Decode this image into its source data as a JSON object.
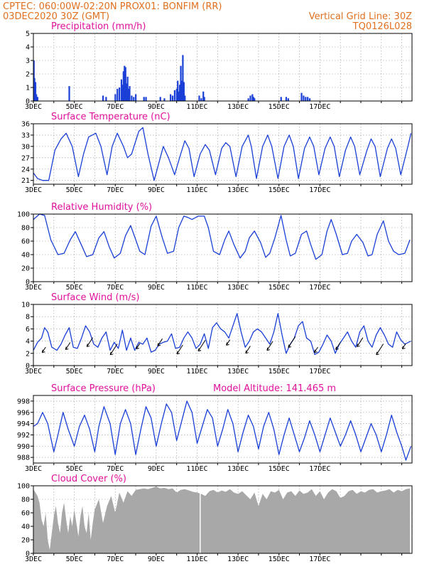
{
  "header": {
    "line1": "CPTEC:   060:00W-02:20N   PROX01: BONFIM (RR)",
    "line2": "03DEC2020 30Z (GMT)",
    "grid_note": "Vertical Grid Line: 30Z",
    "code": "TQ0126L028"
  },
  "colors": {
    "header": "#e07020",
    "title": "#e0109a",
    "series": "#1a3fd6",
    "cloud": "#a8a8a8",
    "grid": "#9a9a9a"
  },
  "x_tick_labels": [
    "3DEC",
    "5DEC",
    "7DEC",
    "9DEC",
    "11DEC",
    "13DEC",
    "15DEC",
    "17DEC"
  ],
  "panels": {
    "precip": {
      "title": "Precipitation (mm/h)",
      "yticks": [
        "0",
        "1",
        "2",
        "3",
        "4",
        "5"
      ]
    },
    "temp": {
      "title": "Surface Temperature (nC)",
      "yticks": [
        "21",
        "24",
        "27",
        "30",
        "33",
        "36"
      ]
    },
    "rh": {
      "title": "Relative Humidity (%)",
      "yticks": [
        "0",
        "20",
        "40",
        "60",
        "80",
        "100"
      ]
    },
    "wind": {
      "title": "Surface Wind (m/s)",
      "yticks": [
        "0",
        "2",
        "4",
        "6",
        "8",
        "10"
      ]
    },
    "pressure": {
      "title": "Surface Pressure (hPa)",
      "altitude": "Model Altitude: 141.465 m",
      "yticks": [
        "988",
        "990",
        "992",
        "994",
        "996",
        "998"
      ]
    },
    "cloud": {
      "title": "Cloud Cover (%)",
      "yticks": [
        "0",
        "20",
        "40",
        "60",
        "80",
        "100"
      ]
    }
  },
  "chart_data": [
    {
      "type": "bar",
      "title": "Precipitation (mm/h)",
      "x_unit": "days since 03DEC 00Z",
      "ylim": [
        0,
        5
      ],
      "points": [
        [
          0.02,
          3.0
        ],
        [
          0.05,
          1.7
        ],
        [
          0.1,
          1.4
        ],
        [
          0.14,
          0.5
        ],
        [
          0.2,
          0.3
        ],
        [
          1.75,
          1.1
        ],
        [
          3.4,
          0.4
        ],
        [
          3.55,
          0.3
        ],
        [
          4.0,
          0.5
        ],
        [
          4.1,
          0.9
        ],
        [
          4.2,
          1.0
        ],
        [
          4.3,
          1.6
        ],
        [
          4.35,
          1.2
        ],
        [
          4.4,
          2.2
        ],
        [
          4.45,
          2.6
        ],
        [
          4.5,
          2.5
        ],
        [
          4.55,
          1.3
        ],
        [
          4.6,
          1.8
        ],
        [
          4.65,
          0.9
        ],
        [
          4.7,
          1.1
        ],
        [
          4.8,
          0.4
        ],
        [
          4.9,
          0.3
        ],
        [
          5.0,
          0.5
        ],
        [
          5.4,
          0.3
        ],
        [
          5.5,
          0.3
        ],
        [
          6.2,
          0.3
        ],
        [
          6.4,
          0.2
        ],
        [
          6.7,
          0.5
        ],
        [
          6.8,
          0.4
        ],
        [
          6.9,
          0.8
        ],
        [
          7.0,
          0.9
        ],
        [
          7.05,
          1.5
        ],
        [
          7.1,
          0.7
        ],
        [
          7.15,
          1.2
        ],
        [
          7.2,
          2.6
        ],
        [
          7.25,
          1.5
        ],
        [
          7.3,
          3.4
        ],
        [
          7.35,
          1.4
        ],
        [
          7.4,
          0.4
        ],
        [
          8.1,
          0.4
        ],
        [
          8.2,
          0.2
        ],
        [
          8.3,
          0.7
        ],
        [
          8.35,
          0.3
        ],
        [
          10.5,
          0.2
        ],
        [
          10.6,
          0.4
        ],
        [
          10.7,
          0.5
        ],
        [
          10.75,
          0.3
        ],
        [
          10.8,
          0.2
        ],
        [
          12.1,
          0.3
        ],
        [
          12.35,
          0.3
        ],
        [
          12.45,
          0.2
        ],
        [
          13.1,
          0.6
        ],
        [
          13.2,
          0.4
        ],
        [
          13.3,
          0.3
        ],
        [
          13.4,
          0.3
        ],
        [
          13.5,
          0.2
        ]
      ]
    },
    {
      "type": "line",
      "title": "Surface Temperature (nC)",
      "x_unit": "days since 03DEC 00Z",
      "ylim": [
        20,
        36
      ],
      "x": [
        0,
        0.2,
        0.45,
        0.75,
        1.05,
        1.35,
        1.6,
        1.9,
        2.2,
        2.45,
        2.7,
        3.05,
        3.3,
        3.6,
        3.85,
        4.1,
        4.4,
        4.6,
        4.8,
        5.15,
        5.35,
        5.6,
        5.9,
        6.2,
        6.35,
        6.6,
        6.9,
        7.2,
        7.4,
        7.6,
        7.85,
        8.15,
        8.4,
        8.6,
        8.9,
        9.2,
        9.4,
        9.6,
        9.9,
        10.2,
        10.5,
        10.65,
        10.9,
        11.2,
        11.45,
        11.65,
        11.95,
        12.25,
        12.5,
        12.7,
        12.95,
        13.25,
        13.5,
        13.7,
        13.95,
        14.25,
        14.5,
        14.7,
        14.95,
        15.25,
        15.5,
        15.7,
        15.95,
        16.3,
        16.5,
        16.7,
        16.95,
        17.3,
        17.5,
        17.7,
        17.95,
        18.3,
        18.45
      ],
      "y": [
        23,
        21.5,
        21,
        21,
        29,
        32,
        33.5,
        30,
        22,
        28,
        32.5,
        33.5,
        30,
        22.5,
        30,
        33.5,
        30,
        27,
        28,
        34,
        35,
        28,
        21,
        27,
        30,
        27,
        22.5,
        28,
        31.5,
        29.5,
        22,
        28,
        30.5,
        29,
        22.5,
        29.5,
        31,
        30,
        22,
        30,
        33,
        30,
        21.5,
        30,
        33,
        30,
        21.5,
        30,
        33,
        30,
        21.5,
        29.5,
        32.5,
        30,
        22.5,
        29.5,
        32.5,
        30,
        22,
        29,
        32.5,
        30,
        22.5,
        29,
        32,
        30,
        22,
        29.5,
        32,
        29.5,
        22.5,
        30,
        33.5
      ]
    },
    {
      "type": "line",
      "title": "Relative Humidity (%)",
      "x_unit": "days since 03DEC 00Z",
      "ylim": [
        0,
        100
      ],
      "x": [
        0,
        0.3,
        0.55,
        0.85,
        1.2,
        1.5,
        1.8,
        2.05,
        2.35,
        2.6,
        2.9,
        3.2,
        3.45,
        3.7,
        3.95,
        4.25,
        4.5,
        4.75,
        5.0,
        5.2,
        5.45,
        5.75,
        6.0,
        6.3,
        6.55,
        6.85,
        7.1,
        7.35,
        7.55,
        7.75,
        8.05,
        8.35,
        8.55,
        8.8,
        9.1,
        9.35,
        9.55,
        9.8,
        10.1,
        10.35,
        10.55,
        10.8,
        11.1,
        11.35,
        11.55,
        11.8,
        12.1,
        12.35,
        12.55,
        12.8,
        13.1,
        13.35,
        13.55,
        13.8,
        14.1,
        14.35,
        14.55,
        14.8,
        15.1,
        15.35,
        15.55,
        15.8,
        16.1,
        16.35,
        16.55,
        16.8,
        17.1,
        17.35,
        17.6,
        17.85,
        18.15,
        18.4
      ],
      "y": [
        92,
        100,
        98,
        62,
        40,
        42,
        62,
        74,
        54,
        37,
        40,
        65,
        74,
        52,
        35,
        42,
        68,
        83,
        62,
        45,
        40,
        82,
        97,
        65,
        42,
        45,
        80,
        97,
        95,
        92,
        97,
        97,
        80,
        45,
        40,
        62,
        75,
        55,
        35,
        45,
        65,
        75,
        58,
        36,
        42,
        65,
        98,
        62,
        38,
        42,
        70,
        75,
        55,
        33,
        40,
        75,
        92,
        70,
        40,
        42,
        60,
        70,
        58,
        38,
        40,
        70,
        90,
        60,
        45,
        40,
        42,
        62
      ]
    },
    {
      "type": "line",
      "title": "Surface Wind (m/s)",
      "x_unit": "days since 03DEC 00Z",
      "ylim": [
        0,
        10
      ],
      "x": [
        0,
        0.2,
        0.4,
        0.55,
        0.7,
        0.9,
        1.15,
        1.35,
        1.55,
        1.75,
        1.95,
        2.15,
        2.35,
        2.55,
        2.75,
        2.95,
        3.15,
        3.35,
        3.55,
        3.75,
        3.95,
        4.15,
        4.35,
        4.55,
        4.75,
        4.95,
        5.15,
        5.35,
        5.55,
        5.75,
        5.95,
        6.15,
        6.35,
        6.55,
        6.75,
        6.95,
        7.15,
        7.35,
        7.55,
        7.75,
        7.95,
        8.15,
        8.35,
        8.55,
        8.75,
        8.95,
        9.15,
        9.35,
        9.55,
        9.75,
        9.95,
        10.15,
        10.35,
        10.55,
        10.75,
        10.95,
        11.15,
        11.35,
        11.55,
        11.75,
        11.95,
        12.15,
        12.35,
        12.55,
        12.75,
        12.95,
        13.15,
        13.35,
        13.55,
        13.75,
        13.95,
        14.15,
        14.35,
        14.55,
        14.75,
        14.95,
        15.15,
        15.35,
        15.55,
        15.75,
        15.95,
        16.15,
        16.35,
        16.55,
        16.75,
        16.95,
        17.15,
        17.35,
        17.55,
        17.75,
        17.95,
        18.15,
        18.45
      ],
      "y": [
        2.5,
        3.8,
        4.5,
        6.2,
        5.5,
        3.0,
        2.5,
        3.5,
        5.0,
        6.2,
        3.0,
        2.8,
        4.5,
        6.5,
        5.5,
        3.5,
        3.0,
        4.5,
        5.5,
        2.5,
        3.8,
        2.8,
        5.8,
        2.5,
        4.5,
        2.5,
        3.8,
        3.5,
        4.5,
        2.2,
        2.5,
        3.5,
        3.8,
        4.0,
        5.2,
        2.8,
        3.0,
        4.5,
        5.5,
        4.5,
        2.8,
        3.5,
        5.2,
        2.8,
        6.2,
        7.0,
        6.0,
        5.5,
        4.5,
        6.5,
        8.5,
        5.5,
        3.0,
        4.0,
        5.5,
        6.0,
        5.5,
        4.5,
        3.5,
        5.5,
        8.5,
        5.0,
        2.0,
        3.5,
        4.5,
        6.5,
        7.2,
        4.5,
        4.0,
        1.8,
        2.2,
        3.5,
        5.0,
        4.0,
        2.0,
        3.5,
        4.5,
        5.5,
        4.0,
        3.0,
        5.5,
        6.5,
        4.0,
        3.0,
        5.0,
        6.2,
        5.0,
        3.5,
        3.0,
        5.5,
        4.2,
        3.5,
        4.0
      ]
    },
    {
      "type": "line",
      "title": "Surface Pressure (hPa)",
      "x_unit": "days since 03DEC 00Z",
      "ylim": [
        987,
        999
      ],
      "x": [
        0,
        0.2,
        0.45,
        0.7,
        1.0,
        1.2,
        1.45,
        1.7,
        2.0,
        2.25,
        2.5,
        2.75,
        3.0,
        3.2,
        3.45,
        3.75,
        4.0,
        4.25,
        4.5,
        4.75,
        5.0,
        5.25,
        5.5,
        5.75,
        6.0,
        6.25,
        6.5,
        6.75,
        7.0,
        7.25,
        7.5,
        7.75,
        8.0,
        8.25,
        8.5,
        8.75,
        9.0,
        9.25,
        9.5,
        9.75,
        10.0,
        10.25,
        10.5,
        10.75,
        11.0,
        11.25,
        11.5,
        11.75,
        12.0,
        12.25,
        12.5,
        12.75,
        13.0,
        13.25,
        13.5,
        13.75,
        14.0,
        14.25,
        14.5,
        14.75,
        15.0,
        15.25,
        15.5,
        15.75,
        16.0,
        16.25,
        16.5,
        16.75,
        17.0,
        17.25,
        17.5,
        17.75,
        18.0,
        18.2,
        18.45
      ],
      "y": [
        993.5,
        994,
        996,
        994,
        989,
        992,
        996,
        993,
        990,
        993.5,
        995.5,
        993,
        989,
        993.5,
        997,
        994,
        988.5,
        994,
        996.5,
        994,
        988.5,
        993,
        997,
        995,
        990,
        994,
        997.5,
        996,
        991,
        994.5,
        998,
        996,
        990.5,
        993.5,
        996.5,
        995,
        990,
        993,
        996.5,
        994,
        989,
        992.5,
        995.5,
        993.5,
        989.5,
        993.5,
        996,
        993,
        988.5,
        992,
        995,
        992,
        989,
        991.5,
        994.5,
        992,
        989,
        992,
        995,
        992.5,
        990,
        992,
        994.5,
        992,
        989,
        991.5,
        994,
        992,
        989,
        992,
        995.5,
        992.5,
        990,
        987.5,
        990
      ]
    },
    {
      "type": "area",
      "title": "Cloud Cover (%)",
      "x_unit": "days since 03DEC 00Z",
      "ylim": [
        0,
        100
      ],
      "x": [
        0,
        0.1,
        0.2,
        0.3,
        0.4,
        0.5,
        0.6,
        0.7,
        0.8,
        0.9,
        1.0,
        1.1,
        1.2,
        1.3,
        1.4,
        1.5,
        1.6,
        1.7,
        1.8,
        1.9,
        2.0,
        2.1,
        2.2,
        2.3,
        2.4,
        2.5,
        2.6,
        2.7,
        2.8,
        2.9,
        3.0,
        3.2,
        3.4,
        3.6,
        3.8,
        4.0,
        4.2,
        4.4,
        4.6,
        4.8,
        5.0,
        5.2,
        5.4,
        5.6,
        5.8,
        6.0,
        6.2,
        6.4,
        6.6,
        6.8,
        7.0,
        7.2,
        7.4,
        7.6,
        7.8,
        8.0,
        8.2,
        8.4,
        8.6,
        8.8,
        9.0,
        9.2,
        9.4,
        9.6,
        9.8,
        10.0,
        10.2,
        10.4,
        10.6,
        10.8,
        11.0,
        11.2,
        11.4,
        11.6,
        11.8,
        12.0,
        12.2,
        12.4,
        12.6,
        12.8,
        13.0,
        13.2,
        13.4,
        13.6,
        13.8,
        14.0,
        14.2,
        14.4,
        14.6,
        14.8,
        15.0,
        15.2,
        15.4,
        15.6,
        15.8,
        16.0,
        16.2,
        16.4,
        16.6,
        16.8,
        17.0,
        17.2,
        17.4,
        17.6,
        17.8,
        18.0,
        18.2,
        18.4
      ],
      "y": [
        95,
        90,
        85,
        75,
        50,
        40,
        60,
        20,
        5,
        30,
        55,
        70,
        45,
        30,
        60,
        75,
        50,
        30,
        55,
        40,
        65,
        45,
        25,
        55,
        70,
        40,
        30,
        60,
        20,
        45,
        65,
        80,
        45,
        70,
        85,
        60,
        90,
        75,
        92,
        85,
        94,
        95,
        96,
        95,
        97,
        99,
        96,
        97,
        95,
        96,
        90,
        94,
        95,
        93,
        91,
        90,
        88,
        85,
        92,
        94,
        90,
        93,
        91,
        95,
        90,
        88,
        92,
        86,
        80,
        90,
        70,
        88,
        80,
        92,
        90,
        94,
        80,
        90,
        92,
        85,
        93,
        88,
        90,
        95,
        85,
        92,
        80,
        90,
        95,
        92,
        82,
        85,
        92,
        94,
        88,
        92,
        90,
        94,
        95,
        90,
        92,
        93,
        95,
        90,
        94,
        92,
        95,
        96
      ]
    }
  ]
}
